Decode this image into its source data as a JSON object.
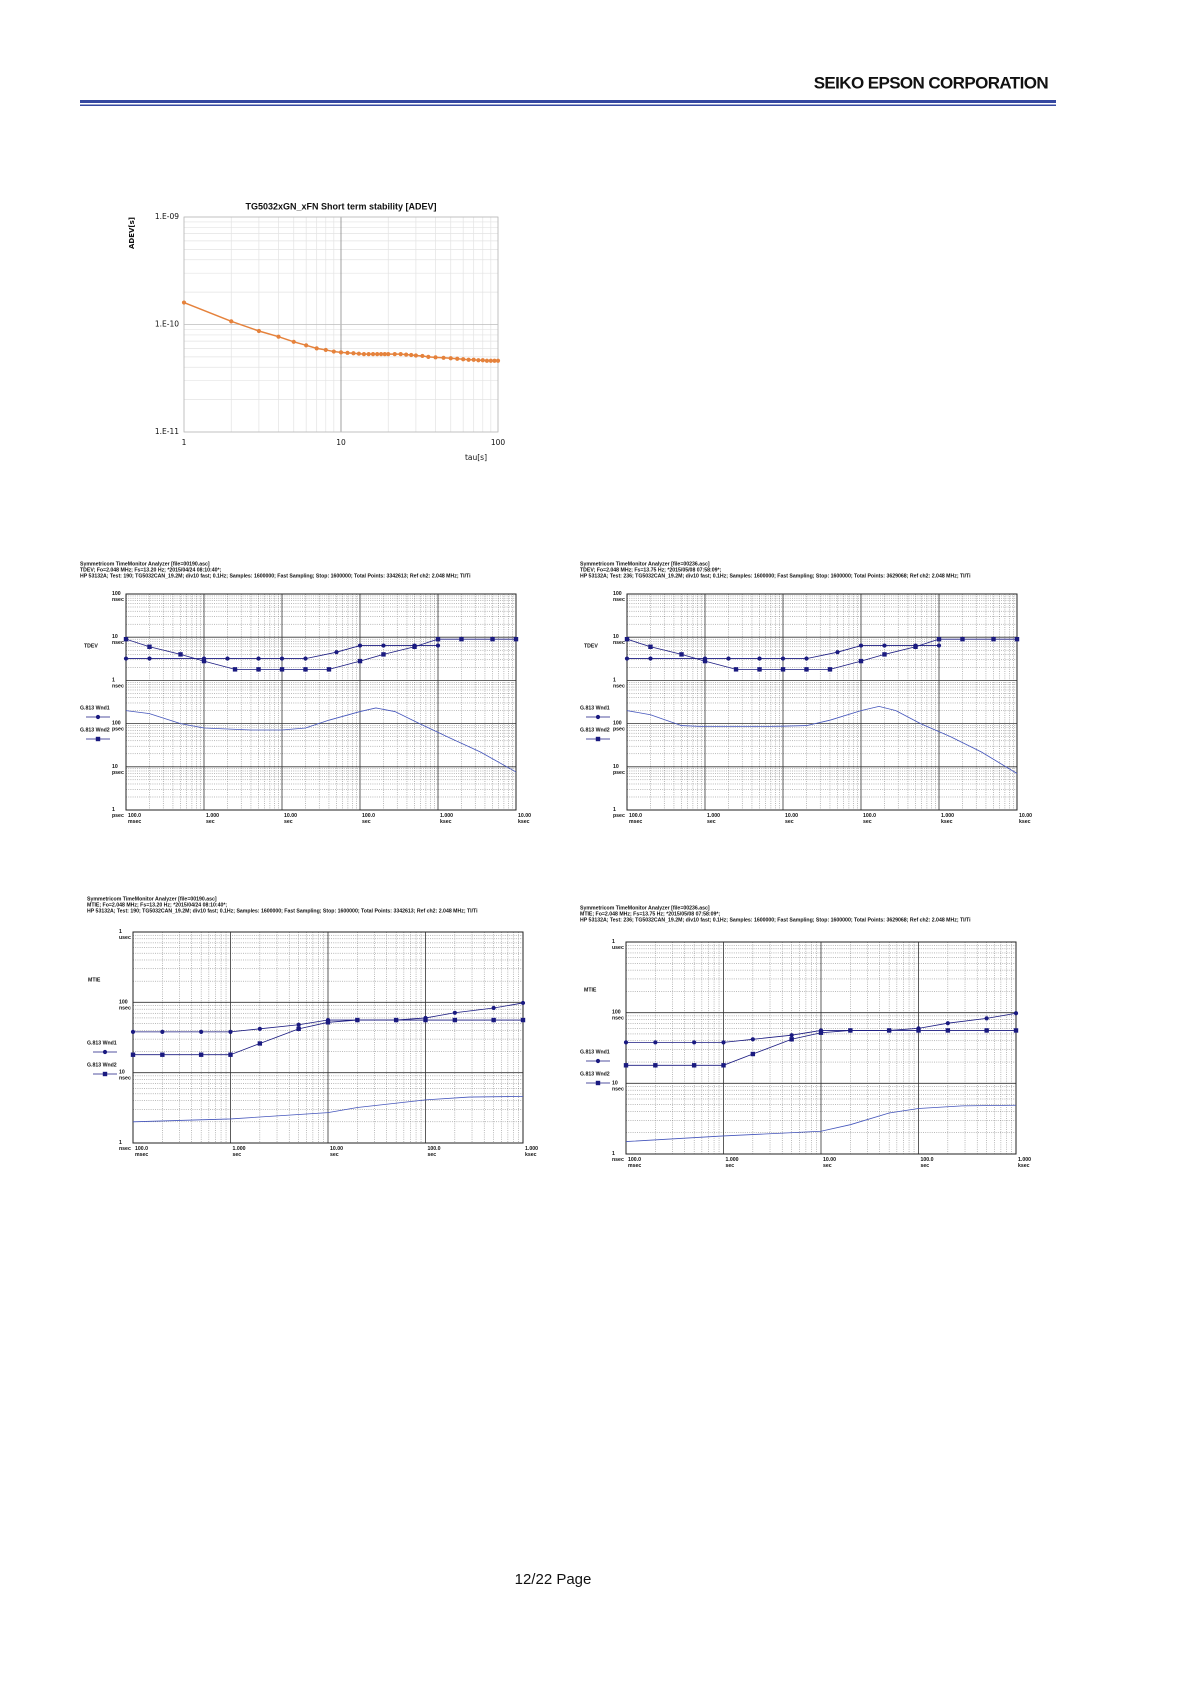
{
  "header": {
    "company": "SEIKO EPSON CORPORATION"
  },
  "footer": {
    "page": "12/22 Page"
  },
  "chart_data": [
    {
      "type": "line",
      "title": "TG5032xGN_xFN Short term stability [ADEV]",
      "x_label": "tau[s]",
      "y_label": "ADEV[s]",
      "log_x": true,
      "log_y": true,
      "grid": true,
      "xlim": [
        1,
        100
      ],
      "xticks": [
        1,
        10,
        100
      ],
      "ylim": [
        1e-11,
        1e-09
      ],
      "yticks": [
        {
          "value": 1e-11,
          "label": "1.E-11"
        },
        {
          "value": 1e-10,
          "label": "1.E-10"
        },
        {
          "value": 1e-09,
          "label": "1.E-09"
        }
      ],
      "series": [
        {
          "color": "#e5823c",
          "marker": "circle",
          "x": [
            1,
            2,
            3,
            4,
            5,
            6,
            7,
            8,
            9,
            10,
            11,
            12,
            13,
            14,
            15,
            16,
            17,
            18,
            19,
            20,
            22,
            24,
            26,
            28,
            30,
            33,
            36,
            40,
            45,
            50,
            55,
            60,
            65,
            70,
            75,
            80,
            85,
            90,
            95,
            100
          ],
          "values": [
            1.6e-10,
            1.07e-10,
            8.7e-11,
            7.7e-11,
            6.9e-11,
            6.4e-11,
            6e-11,
            5.8e-11,
            5.6e-11,
            5.5e-11,
            5.45e-11,
            5.4e-11,
            5.35e-11,
            5.3e-11,
            5.3e-11,
            5.3e-11,
            5.3e-11,
            5.3e-11,
            5.3e-11,
            5.3e-11,
            5.3e-11,
            5.3e-11,
            5.25e-11,
            5.2e-11,
            5.15e-11,
            5.1e-11,
            5e-11,
            4.95e-11,
            4.9e-11,
            4.85e-11,
            4.8e-11,
            4.75e-11,
            4.7e-11,
            4.7e-11,
            4.65e-11,
            4.65e-11,
            4.6e-11,
            4.6e-11,
            4.6e-11,
            4.6e-11
          ]
        }
      ]
    },
    {
      "type": "line",
      "header": [
        "Symmetricom TimeMonitor Analyzer [file=00190.asc]",
        "TDEV; Fo=2.048 MHz; Fs=13.20 Hz; *2015/04/24 08:10:40*;",
        "HP 53132A; Test: 190; TG5032CAN_19.2M; div10 fast; 0.1Hz; Samples: 1600000; Fast Sampling; Stop: 1600000; Total Points: 3342613; Ref ch2: 2.048 MHz; TI/Ti"
      ],
      "y_label": "TDEV",
      "log_x": true,
      "log_y": true,
      "grid": true,
      "xlim": [
        0.1,
        10000
      ],
      "xticks": [
        {
          "value": 0.1,
          "label": "100.0 msec"
        },
        {
          "value": 1,
          "label": "1.000 sec"
        },
        {
          "value": 10,
          "label": "10.00 sec"
        },
        {
          "value": 100,
          "label": "100.0 sec"
        },
        {
          "value": 1000,
          "label": "1.000 ksec"
        },
        {
          "value": 10000,
          "label": "10.00 ksec"
        }
      ],
      "ylim": [
        1e-12,
        1e-07
      ],
      "yticks": [
        {
          "value": 1e-12,
          "label": "1 psec"
        },
        {
          "value": 1e-11,
          "label": "10 psec"
        },
        {
          "value": 1e-10,
          "label": "100 psec"
        },
        {
          "value": 1e-09,
          "label": "1 nsec"
        },
        {
          "value": 1e-08,
          "label": "10 nsec"
        },
        {
          "value": 1e-07,
          "label": "100 nsec"
        }
      ],
      "series": [
        {
          "name": "G.813 Wnd1",
          "color": "#1a1a80",
          "marker": "circle",
          "x": [
            0.1,
            0.2,
            1,
            2,
            5,
            10,
            20,
            50,
            100,
            200,
            500,
            1000
          ],
          "values": [
            3.2e-09,
            3.2e-09,
            3.2e-09,
            3.2e-09,
            3.2e-09,
            3.2e-09,
            3.2e-09,
            4.5e-09,
            6.4e-09,
            6.4e-09,
            6.4e-09,
            6.4e-09
          ]
        },
        {
          "name": "G.813 Wnd2",
          "color": "#1a1a80",
          "marker": "square",
          "x": [
            0.1,
            0.2,
            0.5,
            1,
            2.5,
            5,
            10,
            20,
            40,
            100,
            200,
            500,
            1000,
            2000,
            5000,
            10000
          ],
          "values": [
            9e-09,
            6e-09,
            4e-09,
            2.8e-09,
            1.8e-09,
            1.8e-09,
            1.8e-09,
            1.8e-09,
            1.8e-09,
            2.8e-09,
            4e-09,
            6e-09,
            9e-09,
            9e-09,
            9e-09,
            9e-09
          ]
        },
        {
          "color": "#4455bb",
          "x": [
            0.1,
            0.2,
            0.5,
            1,
            4,
            10,
            20,
            40,
            100,
            160,
            280,
            580,
            1400,
            3500,
            10000
          ],
          "values": [
            2e-10,
            1.7e-10,
            1e-10,
            7.9e-11,
            7.1e-11,
            7.1e-11,
            7.9e-11,
            1.2e-10,
            1.9e-10,
            2.3e-10,
            1.9e-10,
            1e-10,
            4.7e-11,
            2.2e-11,
            7.6e-12
          ]
        }
      ]
    },
    {
      "type": "line",
      "header": [
        "Symmetricom TimeMonitor Analyzer [file=00236.asc]",
        "TDEV; Fo=2.048 MHz; Fs=13.75 Hz; *2015/05/08 07:58:09*;",
        "HP 53132A; Test: 236; TG5032CAN_19.2M; div10 fast; 0.1Hz; Samples: 1600000; Fast Sampling; Stop: 1600000; Total Points: 3629068; Ref ch2: 2.048 MHz; TI/Ti"
      ],
      "y_label": "TDEV",
      "log_x": true,
      "log_y": true,
      "grid": true,
      "xlim": [
        0.1,
        10000
      ],
      "xticks": [
        {
          "value": 0.1,
          "label": "100.0 msec"
        },
        {
          "value": 1,
          "label": "1.000 sec"
        },
        {
          "value": 10,
          "label": "10.00 sec"
        },
        {
          "value": 100,
          "label": "100.0 sec"
        },
        {
          "value": 1000,
          "label": "1.000 ksec"
        },
        {
          "value": 10000,
          "label": "10.00 ksec"
        }
      ],
      "ylim": [
        1e-12,
        1e-07
      ],
      "yticks": [
        {
          "value": 1e-12,
          "label": "1 psec"
        },
        {
          "value": 1e-11,
          "label": "10 psec"
        },
        {
          "value": 1e-10,
          "label": "100 psec"
        },
        {
          "value": 1e-09,
          "label": "1 nsec"
        },
        {
          "value": 1e-08,
          "label": "10 nsec"
        },
        {
          "value": 1e-07,
          "label": "100 nsec"
        }
      ],
      "series": [
        {
          "name": "G.813 Wnd1",
          "color": "#1a1a80",
          "marker": "circle",
          "x": [
            0.1,
            0.2,
            1,
            2,
            5,
            10,
            20,
            50,
            100,
            200,
            500,
            1000
          ],
          "values": [
            3.2e-09,
            3.2e-09,
            3.2e-09,
            3.2e-09,
            3.2e-09,
            3.2e-09,
            3.2e-09,
            4.5e-09,
            6.4e-09,
            6.4e-09,
            6.4e-09,
            6.4e-09
          ]
        },
        {
          "name": "G.813 Wnd2",
          "color": "#1a1a80",
          "marker": "square",
          "x": [
            0.1,
            0.2,
            0.5,
            1,
            2.5,
            5,
            10,
            20,
            40,
            100,
            200,
            500,
            1000,
            2000,
            5000,
            10000
          ],
          "values": [
            9e-09,
            6e-09,
            4e-09,
            2.8e-09,
            1.8e-09,
            1.8e-09,
            1.8e-09,
            1.8e-09,
            1.8e-09,
            2.8e-09,
            4e-09,
            6e-09,
            9e-09,
            9e-09,
            9e-09,
            9e-09
          ]
        },
        {
          "color": "#4455bb",
          "x": [
            0.1,
            0.2,
            0.5,
            1,
            4,
            10,
            20,
            40,
            100,
            170,
            280,
            580,
            1400,
            3500,
            10000
          ],
          "values": [
            2e-10,
            1.6e-10,
            9e-11,
            8.5e-11,
            8.5e-11,
            8.7e-11,
            9e-11,
            1.2e-10,
            2e-10,
            2.5e-10,
            2e-10,
            1e-10,
            5e-11,
            2.2e-11,
            7e-12
          ]
        }
      ]
    },
    {
      "type": "line",
      "header": [
        "Symmetricom TimeMonitor Analyzer [file=00190.asc]",
        "MTIE; Fo=2.048 MHz; Fs=13.20 Hz; *2015/04/24 08:10:40*;",
        "HP 53132A; Test: 190; TG5032CAN_19.2M; div10 fast; 0.1Hz; Samples: 1600000; Fast Sampling; Stop: 1600000; Total Points: 3342613; Ref ch2: 2.048 MHz; TI/Ti"
      ],
      "y_label": "MTIE",
      "log_x": true,
      "log_y": true,
      "grid": true,
      "xlim": [
        0.1,
        1000
      ],
      "xticks": [
        {
          "value": 0.1,
          "label": "100.0 msec"
        },
        {
          "value": 1,
          "label": "1.000 sec"
        },
        {
          "value": 10,
          "label": "10.00 sec"
        },
        {
          "value": 100,
          "label": "100.0 sec"
        },
        {
          "value": 1000,
          "label": "1.000 ksec"
        }
      ],
      "ylim": [
        1e-09,
        1e-06
      ],
      "yticks": [
        {
          "value": 1e-09,
          "label": "1 nsec"
        },
        {
          "value": 1e-08,
          "label": "10 nsec"
        },
        {
          "value": 1e-07,
          "label": "100 nsec"
        },
        {
          "value": 1e-06,
          "label": "1 usec"
        }
      ],
      "series": [
        {
          "name": "G.813 Wnd1",
          "color": "#1a1a80",
          "marker": "circle",
          "x": [
            0.1,
            0.2,
            0.5,
            1,
            2,
            5,
            10,
            20,
            50,
            100,
            200,
            500,
            1000
          ],
          "values": [
            3.8e-08,
            3.8e-08,
            3.8e-08,
            3.8e-08,
            4.2e-08,
            4.8e-08,
            5.6e-08,
            5.6e-08,
            5.6e-08,
            6e-08,
            7.1e-08,
            8.3e-08,
            9.8e-08
          ]
        },
        {
          "name": "G.813 Wnd2",
          "color": "#1a1a80",
          "marker": "square",
          "x": [
            0.1,
            0.2,
            0.5,
            1,
            2,
            5,
            10,
            20,
            50,
            100,
            200,
            500,
            1000
          ],
          "values": [
            1.8e-08,
            1.8e-08,
            1.8e-08,
            1.8e-08,
            2.6e-08,
            4.2e-08,
            5.2e-08,
            5.6e-08,
            5.6e-08,
            5.6e-08,
            5.6e-08,
            5.6e-08,
            5.6e-08
          ]
        },
        {
          "color": "#4455bb",
          "x": [
            0.1,
            1,
            10,
            20,
            100,
            280,
            1000
          ],
          "values": [
            2e-09,
            2.2e-09,
            2.7e-09,
            3.2e-09,
            4.1e-09,
            4.5e-09,
            4.6e-09
          ]
        }
      ]
    },
    {
      "type": "line",
      "header": [
        "Symmetricom TimeMonitor Analyzer [file=00236.asc]",
        "MTIE; Fo=2.048 MHz; Fs=13.75 Hz; *2015/05/08 07:58:09*;",
        "HP 53132A; Test: 236; TG5032CAN_19.2M; div10 fast; 0.1Hz; Samples: 1600000; Fast Sampling; Stop: 1600000; Total Points: 3629068; Ref ch2: 2.048 MHz; TI/Ti"
      ],
      "y_label": "MTIE",
      "log_x": true,
      "log_y": true,
      "grid": true,
      "xlim": [
        0.1,
        1000
      ],
      "xticks": [
        {
          "value": 0.1,
          "label": "100.0 msec"
        },
        {
          "value": 1,
          "label": "1.000 sec"
        },
        {
          "value": 10,
          "label": "10.00 sec"
        },
        {
          "value": 100,
          "label": "100.0 sec"
        },
        {
          "value": 1000,
          "label": "1.000 ksec"
        }
      ],
      "ylim": [
        1e-09,
        1e-06
      ],
      "yticks": [
        {
          "value": 1e-09,
          "label": "1 nsec"
        },
        {
          "value": 1e-08,
          "label": "10 nsec"
        },
        {
          "value": 1e-07,
          "label": "100 nsec"
        },
        {
          "value": 1e-06,
          "label": "1 usec"
        }
      ],
      "series": [
        {
          "name": "G.813 Wnd1",
          "color": "#1a1a80",
          "marker": "circle",
          "x": [
            0.1,
            0.2,
            0.5,
            1,
            2,
            5,
            10,
            20,
            50,
            100,
            200,
            500,
            1000
          ],
          "values": [
            3.8e-08,
            3.8e-08,
            3.8e-08,
            3.8e-08,
            4.2e-08,
            4.8e-08,
            5.6e-08,
            5.6e-08,
            5.6e-08,
            6e-08,
            7.1e-08,
            8.3e-08,
            9.8e-08
          ]
        },
        {
          "name": "G.813 Wnd2",
          "color": "#1a1a80",
          "marker": "square",
          "x": [
            0.1,
            0.2,
            0.5,
            1,
            2,
            5,
            10,
            20,
            50,
            100,
            200,
            500,
            1000
          ],
          "values": [
            1.8e-08,
            1.8e-08,
            1.8e-08,
            1.8e-08,
            2.6e-08,
            4.2e-08,
            5.2e-08,
            5.6e-08,
            5.6e-08,
            5.6e-08,
            5.6e-08,
            5.6e-08,
            5.6e-08
          ]
        },
        {
          "color": "#4455bb",
          "x": [
            0.1,
            1,
            10,
            20,
            50,
            100,
            280,
            1000
          ],
          "values": [
            1.5e-09,
            1.8e-09,
            2.1e-09,
            2.6e-09,
            3.8e-09,
            4.4e-09,
            4.8e-09,
            4.9e-09
          ]
        }
      ]
    }
  ]
}
